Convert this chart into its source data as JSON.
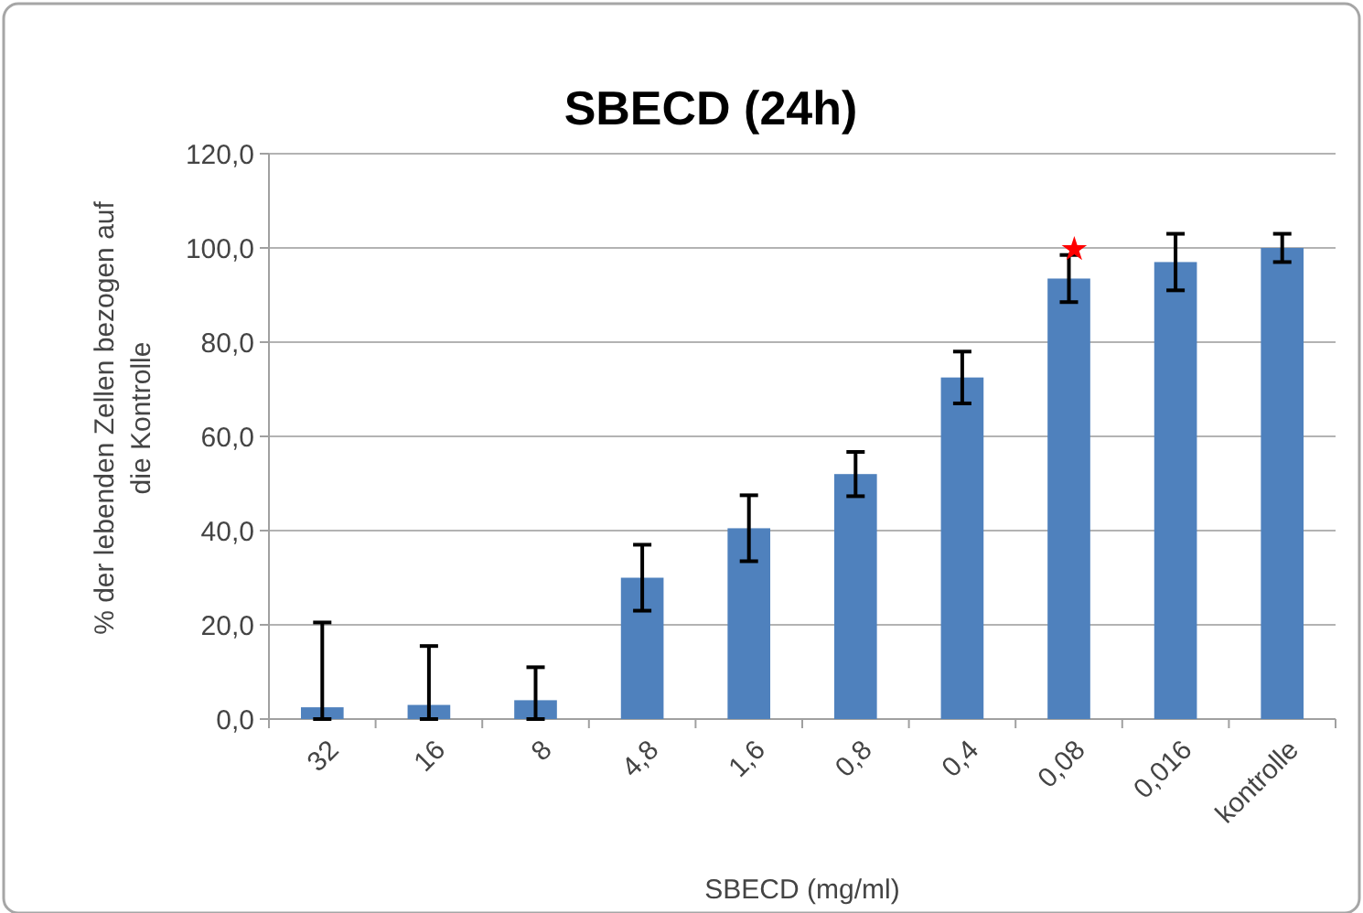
{
  "chart_data": {
    "type": "bar",
    "title": "SBECD (24h)",
    "xlabel": "SBECD (mg/ml)",
    "ylabel": "% der lebenden Zellen bezogen auf die Kontrolle",
    "categories": [
      "32",
      "16",
      "8",
      "4,8",
      "1,6",
      "0,8",
      "0,4",
      "0,08",
      "0,016",
      "kontrolle"
    ],
    "values": [
      2.5,
      3,
      4,
      30,
      40.5,
      52,
      72.5,
      93.5,
      97,
      100
    ],
    "errors": [
      [
        0,
        20.5
      ],
      [
        0,
        15.5
      ],
      [
        0,
        11
      ],
      7,
      7,
      4.7,
      5.5,
      5,
      6,
      3
    ],
    "color": "#4f81bd",
    "ylim": [
      0,
      120
    ],
    "yticks": [
      {
        "value": 0,
        "label": "0,0"
      },
      {
        "value": 20,
        "label": "20,0"
      },
      {
        "value": 40,
        "label": "40,0"
      },
      {
        "value": 60,
        "label": "60,0"
      },
      {
        "value": 80,
        "label": "80,0"
      },
      {
        "value": 100,
        "label": "100,0"
      },
      {
        "value": 120,
        "label": "120,0"
      }
    ],
    "grid": "y",
    "annotations": [
      {
        "text": "★",
        "x": "0,08",
        "y": 100
      }
    ]
  }
}
